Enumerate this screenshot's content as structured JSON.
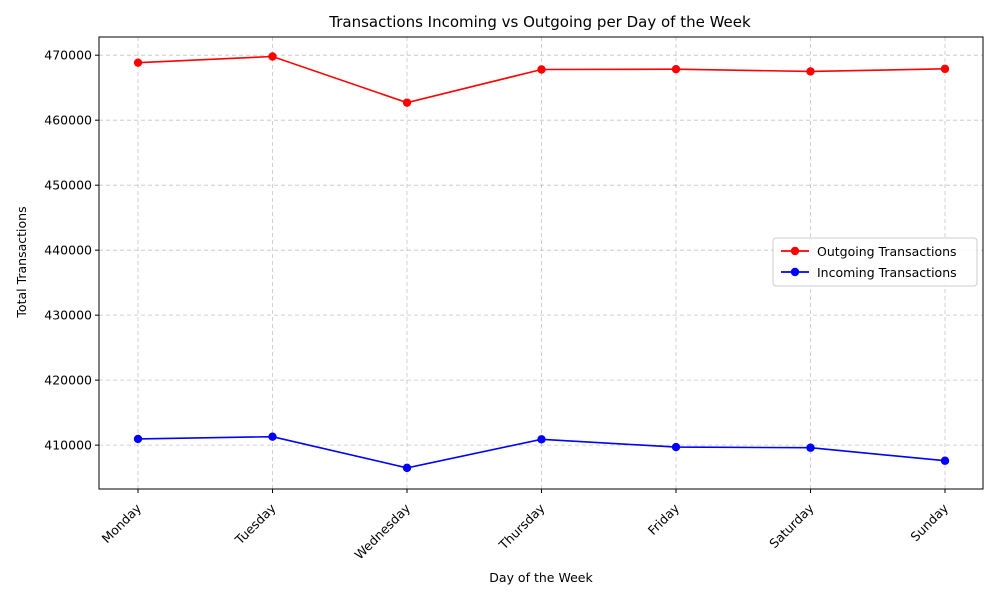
{
  "chart_data": {
    "type": "line",
    "title": "Transactions Incoming vs Outgoing per Day of the Week",
    "xlabel": "Day of the Week",
    "ylabel": "Total Transactions",
    "categories": [
      "Monday",
      "Tuesday",
      "Wednesday",
      "Thursday",
      "Friday",
      "Saturday",
      "Sunday"
    ],
    "series": [
      {
        "name": "Outgoing Transactions",
        "color": "#ff0000",
        "values": [
          468850,
          469800,
          462700,
          467800,
          467850,
          467500,
          467900
        ]
      },
      {
        "name": "Incoming Transactions",
        "color": "#0000ff",
        "values": [
          410950,
          411300,
          406500,
          410900,
          409700,
          409600,
          407600
        ]
      }
    ],
    "yticks": [
      "410000",
      "420000",
      "430000",
      "440000",
      "450000",
      "460000",
      "470000"
    ],
    "ylim": [
      403250,
      472800
    ],
    "grid": true,
    "grid_style": "dashed",
    "legend_position": "center-right",
    "marker": "circle",
    "xtick_rotation": 45
  }
}
